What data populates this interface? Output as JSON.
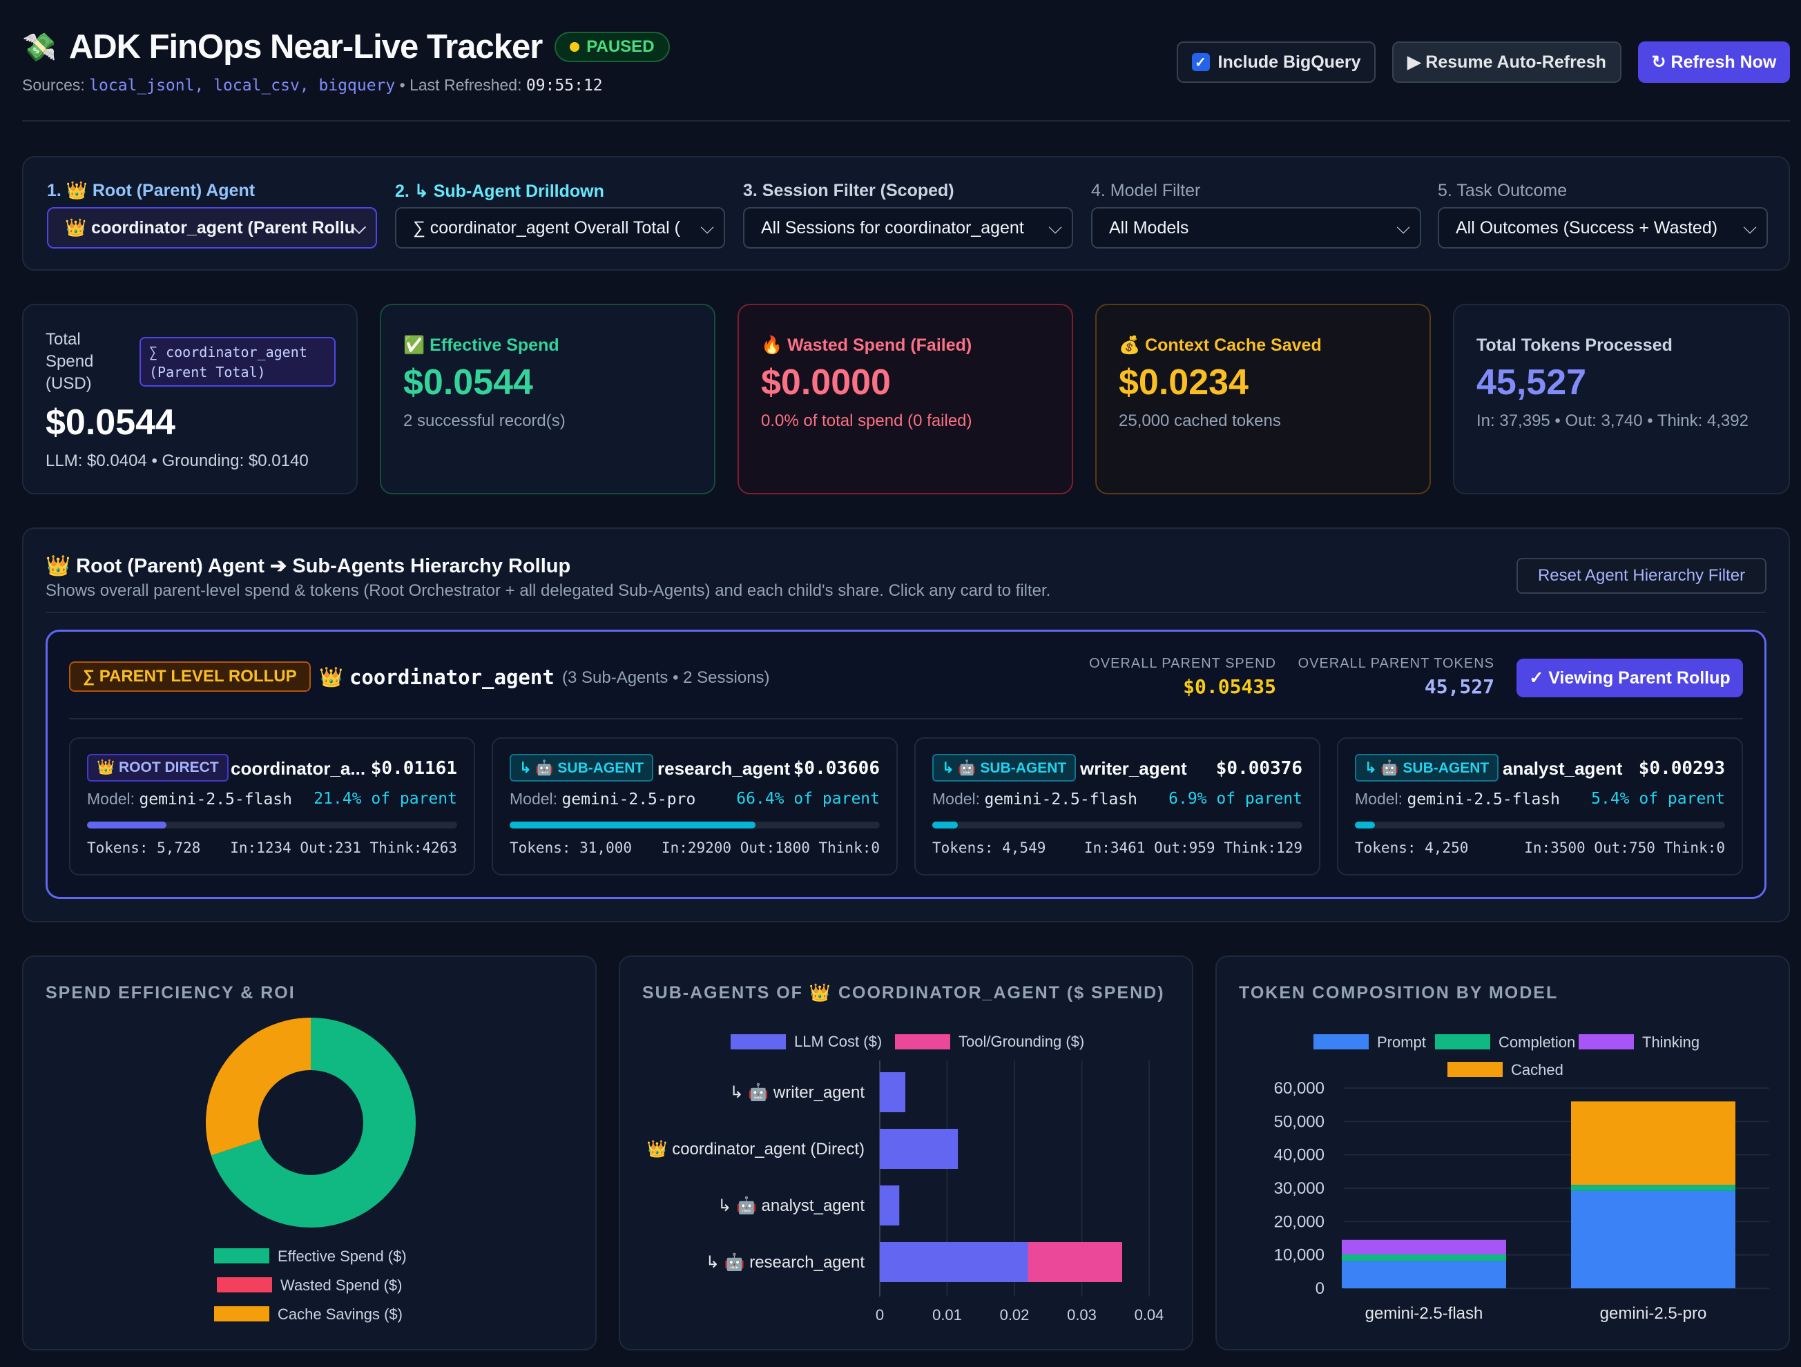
{
  "header": {
    "icon": "money-wings-icon",
    "title": "ADK FinOps Near-Live Tracker",
    "status": "PAUSED",
    "sources_label": "Sources:",
    "sources": "local_jsonl, local_csv, bigquery",
    "refresh_label": "• Last Refreshed:",
    "refresh_time": "09:55:12",
    "bigquery_label": "Include BigQuery",
    "bigquery_checked": true,
    "resume_label": "▶ Resume Auto-Refresh",
    "refresh_now_label": "↻ Refresh Now"
  },
  "filters": [
    {
      "label": "1. 👑 Root (Parent) Agent",
      "value": "👑 coordinator_agent (Parent Rollu"
    },
    {
      "label": "2. ↳ Sub-Agent Drilldown",
      "value": "∑ coordinator_agent Overall Total ("
    },
    {
      "label": "3. Session Filter (Scoped)",
      "value": "All Sessions for coordinator_agent"
    },
    {
      "label": "4. Model Filter",
      "value": "All Models"
    },
    {
      "label": "5. Task Outcome",
      "value": "All Outcomes (Success + Wasted)"
    }
  ],
  "kpis": {
    "total": {
      "label": "Total Spend (USD)",
      "badge": "∑ coordinator_agent (Parent Total)",
      "value": "$0.0544",
      "sub": "LLM: $0.0404 • Grounding: $0.0140"
    },
    "effective": {
      "label": "✅ Effective Spend",
      "value": "$0.0544",
      "sub": "2 successful record(s)"
    },
    "wasted": {
      "label": "🔥 Wasted Spend (Failed)",
      "value": "$0.0000",
      "sub": "0.0% of total spend (0 failed)"
    },
    "cache": {
      "label": "💰 Context Cache Saved",
      "value": "$0.0234",
      "sub": "25,000 cached tokens"
    },
    "tokens": {
      "label": "Total Tokens Processed",
      "value": "45,527",
      "sub": "In: 37,395 • Out: 3,740 • Think: 4,392"
    }
  },
  "hierarchy": {
    "title": "👑 Root (Parent) Agent ➔ Sub-Agents Hierarchy Rollup",
    "desc": "Shows overall parent-level spend & tokens (Root Orchestrator + all delegated Sub-Agents) and each child's share. Click any card to filter.",
    "reset_label": "Reset Agent Hierarchy Filter",
    "rollup_tag": "∑ PARENT LEVEL ROLLUP",
    "parent_name": "coordinator_agent",
    "parent_meta": "(3 Sub-Agents • 2 Sessions)",
    "spend_label": "OVERALL PARENT SPEND",
    "spend_value": "$0.05435",
    "tokens_label": "OVERALL PARENT TOKENS",
    "tokens_value": "45,527",
    "viewing_label": "✓ Viewing Parent Rollup",
    "cards": [
      {
        "tag": "👑 ROOT DIRECT",
        "name": "coordinator_a...",
        "cost": "$0.01161",
        "model_label": "Model:",
        "model": "gemini-2.5-flash",
        "pct": "21.4% of parent",
        "share": 21.4,
        "tokens": "Tokens: 5,728",
        "detail": "In:1234 Out:231 Think:4263"
      },
      {
        "tag": "↳ 🤖 SUB-AGENT",
        "name": "research_agent",
        "cost": "$0.03606",
        "model_label": "Model:",
        "model": "gemini-2.5-pro",
        "pct": "66.4% of parent",
        "share": 66.4,
        "tokens": "Tokens: 31,000",
        "detail": "In:29200 Out:1800 Think:0"
      },
      {
        "tag": "↳ 🤖 SUB-AGENT",
        "name": "writer_agent",
        "cost": "$0.00376",
        "model_label": "Model:",
        "model": "gemini-2.5-flash",
        "pct": "6.9% of parent",
        "share": 6.9,
        "tokens": "Tokens: 4,549",
        "detail": "In:3461 Out:959 Think:129"
      },
      {
        "tag": "↳ 🤖 SUB-AGENT",
        "name": "analyst_agent",
        "cost": "$0.00293",
        "model_label": "Model:",
        "model": "gemini-2.5-flash",
        "pct": "5.4% of parent",
        "share": 5.4,
        "tokens": "Tokens: 4,250",
        "detail": "In:3500 Out:750 Think:0"
      }
    ]
  },
  "charts": {
    "efficiency_title": "SPEND EFFICIENCY & ROI",
    "subagents_title": "SUB-AGENTS OF 👑 COORDINATOR_AGENT ($ SPEND)",
    "tokens_title": "TOKEN COMPOSITION BY MODEL"
  },
  "chart_data": [
    {
      "type": "pie",
      "title": "SPEND EFFICIENCY & ROI",
      "categories": [
        "Effective Spend ($)",
        "Wasted Spend ($)",
        "Cache Savings ($)"
      ],
      "values": [
        0.0544,
        0.0,
        0.0234
      ],
      "colors": [
        "#10b981",
        "#f43f5e",
        "#f59e0b"
      ],
      "legend": "bottom"
    },
    {
      "type": "bar",
      "orientation": "horizontal",
      "stacked": true,
      "title": "SUB-AGENTS OF 👑 COORDINATOR_AGENT ($ SPEND)",
      "categories": [
        "↳ 🤖 writer_agent",
        "👑 coordinator_agent (Direct)",
        "↳ 🤖 analyst_agent",
        "↳ 🤖 research_agent"
      ],
      "series": [
        {
          "name": "LLM Cost ($)",
          "values": [
            0.0038,
            0.0116,
            0.0029,
            0.022
          ],
          "color": "#6366f1"
        },
        {
          "name": "Tool/Grounding ($)",
          "values": [
            0,
            0,
            0,
            0.014
          ],
          "color": "#ec4899"
        }
      ],
      "xlim": [
        0,
        0.04
      ],
      "xticks": [
        "0",
        "0.01",
        "0.02",
        "0.03",
        "0.04"
      ],
      "grid": true,
      "legend": "top"
    },
    {
      "type": "bar",
      "stacked": true,
      "title": "TOKEN COMPOSITION BY MODEL",
      "categories": [
        "gemini-2.5-flash",
        "gemini-2.5-pro"
      ],
      "series": [
        {
          "name": "Prompt",
          "values": [
            8195,
            29200
          ],
          "color": "#3b82f6"
        },
        {
          "name": "Completion",
          "values": [
            1940,
            1800
          ],
          "color": "#10b981"
        },
        {
          "name": "Thinking",
          "values": [
            4392,
            0
          ],
          "color": "#a855f7"
        },
        {
          "name": "Cached",
          "values": [
            0,
            25000
          ],
          "color": "#f59e0b"
        }
      ],
      "ylim": [
        0,
        60000
      ],
      "yticks": [
        "60,000",
        "50,000",
        "40,000",
        "30,000",
        "20,000",
        "10,000",
        "0"
      ],
      "grid": true,
      "legend": "top"
    }
  ]
}
